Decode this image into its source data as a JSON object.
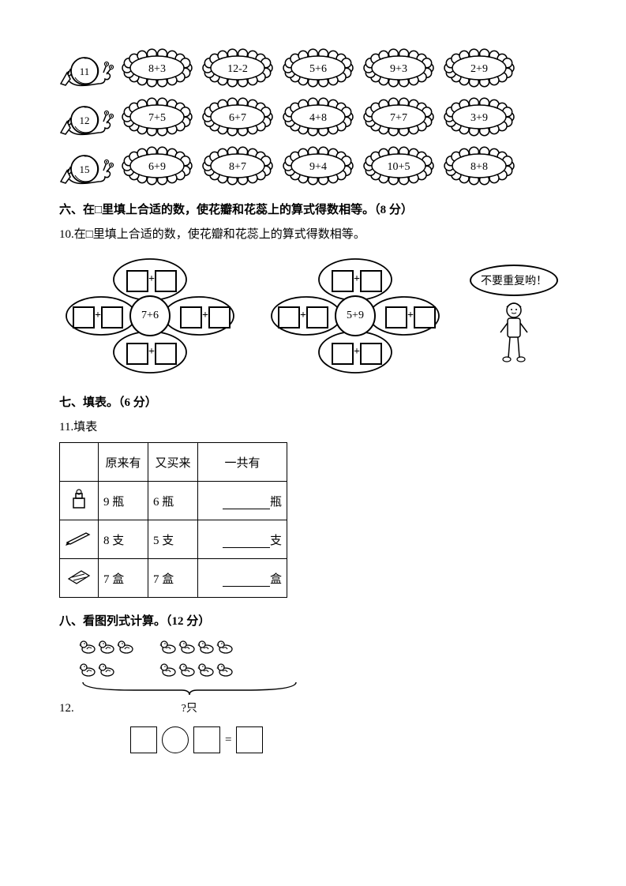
{
  "snail_section": {
    "rows": [
      {
        "num": "11",
        "flowers": [
          "8+3",
          "12-2",
          "5+6",
          "9+3",
          "2+9"
        ]
      },
      {
        "num": "12",
        "flowers": [
          "7+5",
          "6+7",
          "4+8",
          "7+7",
          "3+9"
        ]
      },
      {
        "num": "15",
        "flowers": [
          "6+9",
          "8+7",
          "9+4",
          "10+5",
          "8+8"
        ]
      }
    ]
  },
  "sec6_title": "六、在□里填上合适的数，使花瓣和花蕊上的算式得数相等。（8 分）",
  "q10_text": "10.在□里填上合适的数，使花瓣和花蕊上的算式得数相等。",
  "q10": {
    "flower1_center": "7+6",
    "flower2_center": "5+9",
    "speech": "不要重复哟！"
  },
  "sec7_title": "七、填表。（6 分）",
  "q11_text": "11.填表",
  "q11": {
    "headers": [
      "原来有",
      "又买来",
      "一共有"
    ],
    "rows": [
      {
        "icon": "ink",
        "orig": "9 瓶",
        "more": "6 瓶",
        "unit": "瓶"
      },
      {
        "icon": "pen",
        "orig": "8 支",
        "more": "5 支",
        "unit": "支"
      },
      {
        "icon": "eraser",
        "orig": "7 盒",
        "more": "7 盒",
        "unit": "盒"
      }
    ]
  },
  "sec8_title": "八、看图列式计算。（12 分）",
  "q12_num": "12.",
  "q12": {
    "left_count": 5,
    "right_count": 8,
    "label": "?只"
  }
}
